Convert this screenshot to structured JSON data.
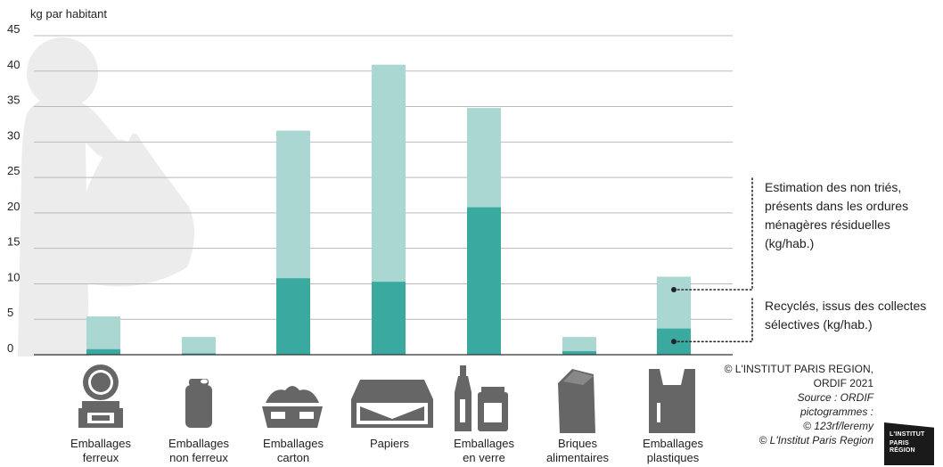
{
  "chart_data": {
    "type": "bar",
    "stacked": true,
    "ylabel": "kg par habitant",
    "ylim": [
      0,
      45
    ],
    "yticks": [
      0,
      5,
      10,
      15,
      20,
      25,
      30,
      35,
      40,
      45
    ],
    "grid": true,
    "categories": [
      [
        "Emballages",
        "ferreux"
      ],
      [
        "Emballages",
        "non ferreux"
      ],
      [
        "Emballages",
        "carton"
      ],
      [
        "Papiers"
      ],
      [
        "Emballages",
        "en verre"
      ],
      [
        "Briques",
        "alimentaires"
      ],
      [
        "Emballages",
        "plastiques"
      ]
    ],
    "series": [
      {
        "name": "Recyclés, issus des collectes sélectives (kg/hab.)",
        "color": "#3aa9a0",
        "values": [
          0.8,
          0.2,
          10.8,
          10.3,
          20.8,
          0.5,
          3.7
        ]
      },
      {
        "name": "Estimation des non triés, présents dans les ordures ménagères résiduelles (kg/hab.)",
        "color": "#abd7d3",
        "values": [
          4.6,
          2.3,
          20.8,
          30.6,
          14.0,
          2.0,
          7.3
        ]
      }
    ],
    "legend_position": "right",
    "annotations": {
      "unsorted": [
        "Estimation des non triés,",
        "présents dans les ordures",
        "ménagères résiduelles",
        "(kg/hab.)"
      ],
      "recycled": [
        "Recyclés, issus des collectes",
        "sélectives (kg/hab.)"
      ]
    }
  },
  "credits": {
    "lines": [
      "© L'INSTITUT PARIS REGION,",
      "ORDIF 2021"
    ],
    "italic_lines": [
      "Source : ORDIF",
      "pictogrammes :",
      "© 123rf/leremy",
      "© L'Institut Paris Region"
    ]
  },
  "logo": {
    "lines": [
      "L'INSTITUT",
      "PARIS",
      "RÉGION"
    ]
  },
  "colors": {
    "grid": "#b9b9b9",
    "axis": "#333333",
    "icon": "#666666",
    "background_figure": "#ececec"
  }
}
